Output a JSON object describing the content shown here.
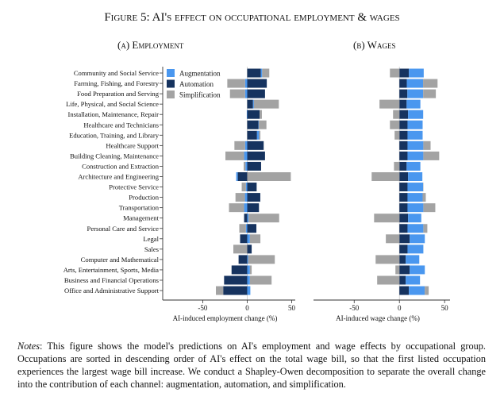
{
  "title": "Figure 5: AI's effect on occupational employment & wages",
  "notes_label": "Notes",
  "notes_text": ": This figure shows the model's predictions on AI's employment and wage effects by occupational group. Occupations are sorted in descending order of AI's effect on the total wage bill, so that the first listed occupation experiences the largest wage bill increase. We conduct a Shapley-Owen decomposition to separate the overall change into the contribution of each channel: augmentation, automation, and simplification.",
  "colors": {
    "Augmentation": "#4a97ef",
    "Automation": "#16335f",
    "Simplification": "#a3a3a3"
  },
  "chart_data": [
    {
      "type": "bar",
      "orientation": "horizontal-stacked",
      "title": "(a) Employment",
      "xlabel": "AI-induced employment change (%)",
      "xlim": [
        -95,
        54
      ],
      "xticks": [
        -50,
        0,
        50
      ],
      "legend": {
        "placement": "top-left",
        "entries": [
          "Augmentation",
          "Automation",
          "Simplification"
        ]
      },
      "categories": [
        "Community and Social Service",
        "Farming, Fishing, and Forestry",
        "Food Preparation and Serving",
        "Life, Physical, and Social Science",
        "Installation, Maintenance, Repair",
        "Healthcare and Technicians",
        "Education, Training, and Library",
        "Healthcare Support",
        "Building Cleaning, Maintenance",
        "Construction and Extraction",
        "Architecture and Engineering",
        "Protective Service",
        "Production",
        "Transportation",
        "Management",
        "Personal Care and Service",
        "Legal",
        "Sales",
        "Computer and Mathematical",
        "Arts, Entertainment, Sports, Media",
        "Business and Financial Operations",
        "Office and Administrative Support"
      ],
      "series": [
        {
          "name": "Automation",
          "values": [
            15.3,
            22,
            20,
            6.5,
            14,
            12.6,
            11,
            18.5,
            20,
            15.6,
            -10.6,
            10.6,
            14.7,
            13.2,
            -3.5,
            10.3,
            -8,
            5,
            -9.7,
            -17.6,
            -26,
            -27
          ]
        },
        {
          "name": "Augmentation",
          "values": [
            1.5,
            -2.4,
            -2.4,
            1,
            -0.5,
            0.5,
            2.3,
            -2.4,
            -3.5,
            -2,
            -1.8,
            -1.5,
            -2.6,
            -3.5,
            1.5,
            -1.5,
            3,
            0,
            1,
            3,
            3,
            3.5
          ]
        },
        {
          "name": "Simplification",
          "values": [
            8,
            -20,
            -17,
            28,
            2.5,
            8.5,
            1.5,
            -12,
            -21,
            -2,
            49,
            -4.7,
            -10.6,
            -17,
            34.4,
            -7.4,
            11.8,
            -15.6,
            30,
            2,
            24.4,
            -8.2
          ]
        }
      ]
    },
    {
      "type": "bar",
      "orientation": "horizontal-stacked",
      "title": "(b) Wages",
      "xlabel": "AI-induced wage change (%)",
      "xlim": [
        -95,
        56
      ],
      "xticks": [
        -50,
        0,
        50
      ],
      "series": [
        {
          "name": "Automation",
          "values": [
            10.5,
            8.2,
            8.8,
            8,
            9.6,
            9,
            9,
            9,
            9,
            8,
            9.6,
            9,
            9,
            9,
            9.6,
            9,
            11.4,
            9,
            7,
            11.4,
            7,
            10.5
          ]
        },
        {
          "name": "Augmentation",
          "values": [
            16.4,
            18,
            17.5,
            15.2,
            16.7,
            16.7,
            16.7,
            17.5,
            17.5,
            15.2,
            15.8,
            17.3,
            16.7,
            17.5,
            14.6,
            17.5,
            16.7,
            17.5,
            15,
            16.7,
            15.8,
            17.5
          ]
        },
        {
          "name": "Simplification",
          "values": [
            -10.5,
            16,
            14,
            -22,
            -7,
            -10.5,
            -5.3,
            8,
            17.5,
            -6,
            -30.7,
            0.3,
            3.5,
            13.2,
            -28,
            4.4,
            -15,
            0,
            -26.3,
            -4.4,
            -24.6,
            4.4
          ]
        }
      ]
    }
  ]
}
